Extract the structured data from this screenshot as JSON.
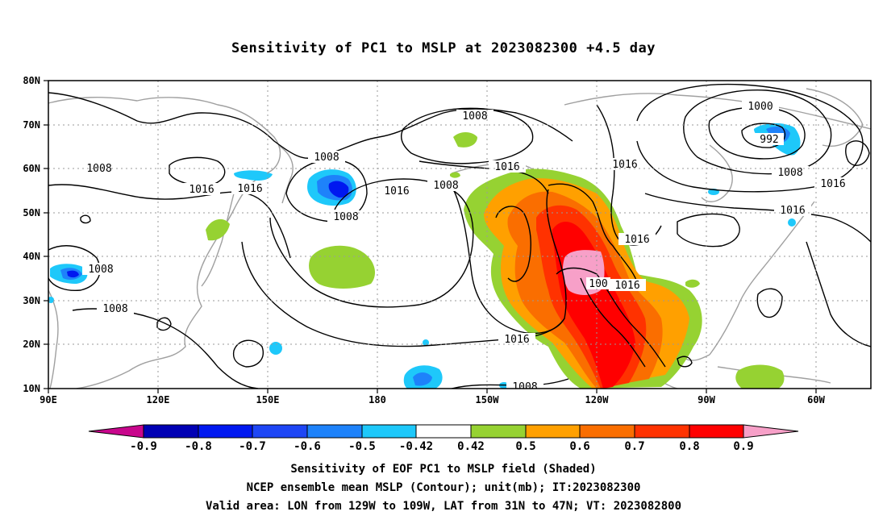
{
  "title": "Sensitivity of PC1 to MSLP at 2023082300 +4.5 day",
  "lat_labels": [
    "80N",
    "70N",
    "60N",
    "50N",
    "40N",
    "30N",
    "20N",
    "10N"
  ],
  "lon_labels": [
    "90E",
    "120E",
    "150E",
    "180",
    "150W",
    "120W",
    "90W",
    "60W"
  ],
  "colorbar": {
    "ticks": [
      "-0.9",
      "-0.8",
      "-0.7",
      "-0.6",
      "-0.5",
      "-0.42",
      "0.42",
      "0.5",
      "0.6",
      "0.7",
      "0.8",
      "0.9"
    ],
    "colors": [
      "#c8068c",
      "#0000b4",
      "#0018f0",
      "#1e46f5",
      "#1e82fa",
      "#1ec8fa",
      "#ffffff",
      "#96d232",
      "#ffa000",
      "#fa6e00",
      "#ff3200",
      "#ff0000",
      "#f7a0c8"
    ]
  },
  "contour_labels": {
    "c1": "1008",
    "c2": "1008",
    "c3": "1008",
    "c4": "1008",
    "c5": "1008",
    "c6": "1008",
    "c7": "1008",
    "c8": "1008",
    "c9": "1008",
    "c10": "1008",
    "c11": "1016",
    "c12": "1016",
    "c13": "1016",
    "c14": "1016",
    "c15": "1016",
    "c16": "1016",
    "c17": "1016",
    "c18": "1016",
    "c19": "1016",
    "c20": "1000",
    "c21": "992",
    "c22": "100"
  },
  "captions": {
    "line1": "Sensitivity of EOF PC1 to MSLP field (Shaded)",
    "line2": "NCEP ensemble mean MSLP (Contour); unit(mb); IT:2023082300",
    "line3": "Valid area: LON from 129W to 109W, LAT from 31N to 47N; VT: 2023082800"
  }
}
